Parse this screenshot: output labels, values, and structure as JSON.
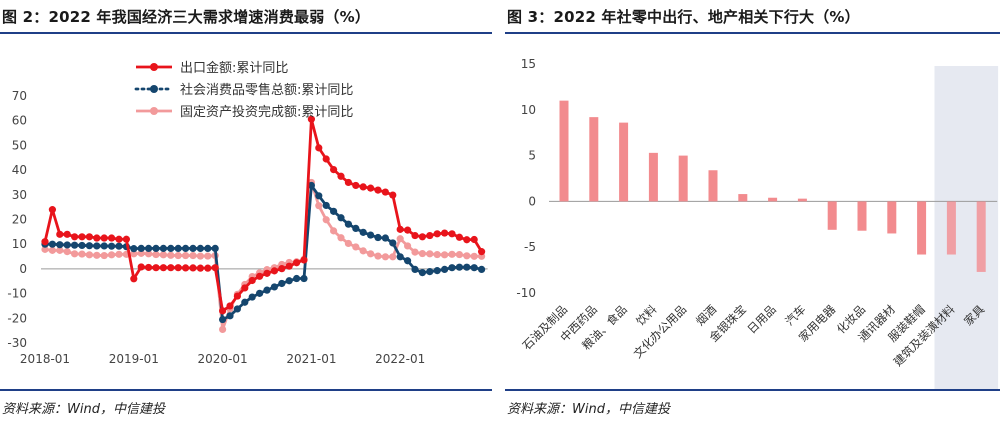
{
  "charts": [
    {
      "title": "图 2：2022 年我国经济三大需求增速消费最弱（%）",
      "source": "资料来源：Wind，中信建投"
    },
    {
      "title": "图 3：2022 年社零中出行、地产相关下行大（%）",
      "source": "资料来源：Wind，中信建投"
    }
  ],
  "chart_data": [
    {
      "type": "line",
      "x_ticks": [
        "2018-01",
        "2019-01",
        "2020-01",
        "2021-01",
        "2022-01"
      ],
      "x_range": [
        "2018-01",
        "2022-12"
      ],
      "ylim": [
        -30,
        70
      ],
      "y_ticks": [
        70,
        60,
        50,
        40,
        30,
        20,
        10,
        0,
        -10,
        -20,
        -30
      ],
      "grid": false,
      "legend_position": "top",
      "series": [
        {
          "name": "出口金额:累计同比",
          "color": "#e8141b",
          "values": [
            11,
            24,
            14,
            14,
            13,
            13,
            13,
            12.5,
            12.5,
            12.5,
            12,
            12,
            -4,
            0.8,
            0.6,
            0.5,
            0.5,
            0.5,
            0.5,
            0.4,
            0.4,
            0.3,
            0.3,
            0.5,
            -17,
            -15,
            -11,
            -7.7,
            -4.7,
            -3,
            -1.8,
            -0.8,
            0.1,
            1.1,
            2.5,
            3.6,
            60.6,
            49,
            44.5,
            40.2,
            37.5,
            35,
            33.8,
            33.2,
            32.7,
            31.9,
            31.1,
            29.9,
            16,
            15.7,
            13.5,
            13,
            13.5,
            14.2,
            14.5,
            14.2,
            12.8,
            11.8,
            11.9,
            7
          ]
        },
        {
          "name": "社会消费品零售总额:累计同比",
          "color": "#15466e",
          "values": [
            10,
            10,
            9.8,
            9.7,
            9.6,
            9.5,
            9.4,
            9.3,
            9.3,
            9.2,
            9.2,
            9.0,
            8.2,
            8.3,
            8.3,
            8.3,
            8.3,
            8.3,
            8.3,
            8.3,
            8.3,
            8.3,
            8.3,
            8.3,
            -20.5,
            -19,
            -16.2,
            -13.5,
            -11.4,
            -9.9,
            -8.6,
            -7.3,
            -5.9,
            -4.8,
            -3.9,
            -3.9,
            33.8,
            29.6,
            25.7,
            23.3,
            20.7,
            18.1,
            16.4,
            14.8,
            13.7,
            12.7,
            12.5,
            10.5,
            4.9,
            3.3,
            -0.2,
            -1.5,
            -1.1,
            -0.7,
            -0.2,
            0.5,
            0.7,
            0.7,
            0.5,
            -0.2
          ]
        },
        {
          "name": "固定资产投资完成额:累计同比",
          "color": "#f29a9b",
          "values": [
            7.9,
            7.5,
            7.5,
            7,
            6.1,
            6,
            5.7,
            5.5,
            5.4,
            5.7,
            5.9,
            5.9,
            6.1,
            6.3,
            6.1,
            5.8,
            5.7,
            5.5,
            5.4,
            5.4,
            5.4,
            5.2,
            5.2,
            5.4,
            -24.5,
            -16.1,
            -10.3,
            -6.3,
            -3.1,
            -1.6,
            -0.3,
            0.5,
            1.8,
            2.6,
            2.9,
            3.9,
            35,
            25.6,
            19.9,
            15.4,
            12.6,
            10.3,
            8.9,
            7.3,
            6.1,
            5.2,
            4.9,
            4.9,
            12.2,
            9.3,
            6.8,
            6.2,
            6.1,
            5.8,
            5.7,
            5.9,
            5.8,
            5.3,
            5.1,
            5.1
          ]
        }
      ]
    },
    {
      "type": "bar",
      "ylim": [
        -10,
        15
      ],
      "y_ticks": [
        15,
        10,
        5,
        0,
        -5,
        -10
      ],
      "grid": false,
      "bar_color": "#f28b8e",
      "highlight_fill": "#e6e9f1",
      "categories": [
        "石油及制品",
        "中西药品",
        "粮油、食品",
        "饮料",
        "文化办公用品",
        "烟酒",
        "金银珠宝",
        "日用品",
        "汽车",
        "家用电器",
        "化妆品",
        "通讯器材",
        "服装鞋帽",
        "建筑及装潢材料",
        "家具"
      ],
      "values": [
        11,
        9.2,
        8.6,
        5.3,
        5,
        3.4,
        0.8,
        0.4,
        0.3,
        -3.1,
        -3.2,
        -3.5,
        -5.8,
        -5.8,
        -7.7
      ],
      "highlighted_categories": [
        "建筑及装潢材料",
        "家具"
      ]
    }
  ]
}
